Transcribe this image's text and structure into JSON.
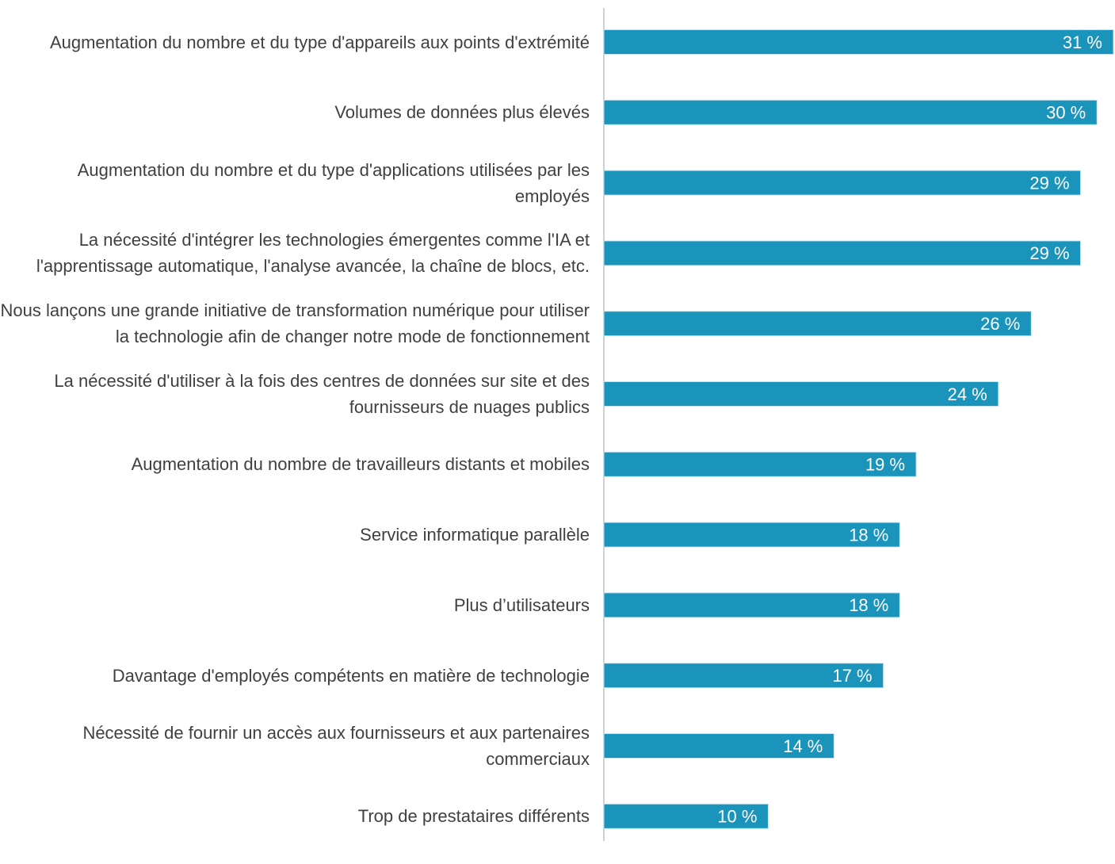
{
  "chart_data": {
    "type": "bar",
    "orientation": "horizontal",
    "categories": [
      "Augmentation du nombre et du type d'appareils aux points d'extrémité",
      "Volumes de données plus élevés",
      "Augmentation du nombre et du type d'applications utilisées par les employés",
      "La nécessité d'intégrer les technologies émergentes comme l'IA et l'apprentissage automatique, l'analyse avancée, la chaîne de blocs, etc.",
      "Nous lançons une grande initiative de transformation numérique pour utiliser la technologie afin de changer notre mode de fonctionnement",
      "La nécessité d'utiliser à la fois des centres de données sur site et des fournisseurs de nuages publics",
      "Augmentation du nombre de travailleurs distants et mobiles",
      "Service informatique parallèle",
      "Plus d’utilisateurs",
      "Davantage d'employés compétents en matière de technologie",
      "Nécessité de fournir un accès aux fournisseurs et aux partenaires commerciaux",
      "Trop de prestataires différents"
    ],
    "values": [
      31,
      30,
      29,
      29,
      26,
      24,
      19,
      18,
      18,
      17,
      14,
      10
    ],
    "value_labels": [
      "31 %",
      "30 %",
      "29 %",
      "29 %",
      "26 %",
      "24 %",
      "19 %",
      "18 %",
      "18 %",
      "17 %",
      "14 %",
      "10 %"
    ],
    "color": "#1a94bb",
    "xlim": [
      0,
      31
    ]
  }
}
